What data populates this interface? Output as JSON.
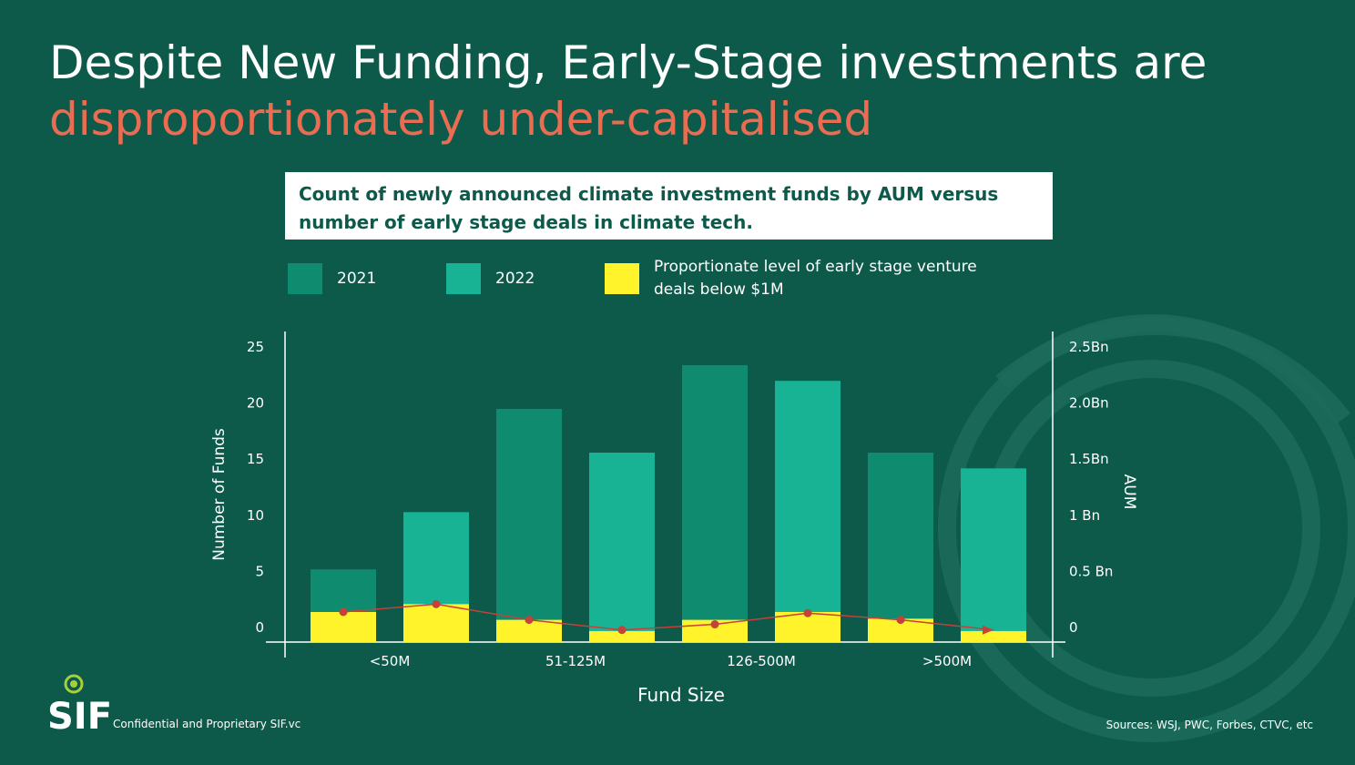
{
  "headline": {
    "line1": "Despite New Funding, Early-Stage investments are",
    "line2": "disproportionately under-capitalised"
  },
  "subtitle": {
    "line1": "Count of newly announced climate investment funds by AUM versus",
    "line2": "number of early stage deals in climate tech."
  },
  "legend": [
    {
      "label": "2021",
      "color": "#0f8b6f"
    },
    {
      "label": "2022",
      "color": "#17b394"
    },
    {
      "label": "Proportionate level of early stage venture deals below $1M",
      "color": "#fff42b"
    }
  ],
  "colors": {
    "background": "#0d5a4b",
    "bar2021": "#0f8b6f",
    "bar2022": "#17b394",
    "early_stage": "#fff42b",
    "trend_line": "#c4423a",
    "title_accent": "#ec6c52"
  },
  "chart_data": {
    "type": "bar",
    "title": "Count of newly announced climate investment funds by AUM versus number of early stage deals in climate tech.",
    "xlabel": "Fund Size",
    "ylabel": "Number of Funds",
    "y2label": "AUM",
    "ylim": [
      0,
      25
    ],
    "y_ticks": [
      "0",
      "5",
      "10",
      "15",
      "20",
      "25"
    ],
    "y2_ticks": [
      "0",
      "0.5 Bn",
      "1 Bn",
      "1.5Bn",
      "2.0Bn",
      "2.5Bn"
    ],
    "categories": [
      "<50M",
      "51-125M",
      "126-500M",
      ">500M"
    ],
    "series": [
      {
        "name": "2021",
        "values": [
          5.1,
          19.4,
          23.3,
          15.5
        ]
      },
      {
        "name": "2022",
        "values": [
          10.2,
          15.5,
          21.9,
          14.1
        ]
      }
    ],
    "early_stage_deals": {
      "name": "Proportionate level of early stage venture deals below $1M",
      "values_2021": [
        1.3,
        0.6,
        0.6,
        0.7
      ],
      "values_2022": [
        2.0,
        -0.4,
        1.3,
        -0.4
      ],
      "trend": [
        1.3,
        2.0,
        0.6,
        -0.3,
        0.2,
        1.2,
        0.6,
        -0.3
      ]
    },
    "grid": false,
    "legend_position": "top"
  },
  "footer": {
    "confidential": "Confidential and Proprietary SIF.vc",
    "sources": "Sources: WSJ, PWC, Forbes, CTVC, etc",
    "logo_text": "SIF"
  }
}
